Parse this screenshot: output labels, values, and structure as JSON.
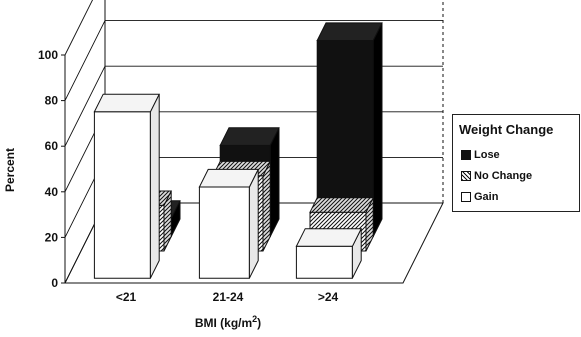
{
  "chart_data": {
    "type": "bar",
    "categories": [
      "<21",
      "21-24",
      ">24"
    ],
    "series": [
      {
        "name": "Lose",
        "values": [
          8,
          40,
          86
        ]
      },
      {
        "name": "No Change",
        "values": [
          20,
          33,
          17
        ]
      },
      {
        "name": "Gain",
        "values": [
          73,
          40,
          14
        ]
      }
    ],
    "ylabel": "Percent",
    "xlabel": "BMI (kg/m²)",
    "xlabel_base": "BMI (kg/m",
    "xlabel_sup": "2",
    "xlabel_end": ")",
    "ylim": [
      0,
      100
    ],
    "yticks": [
      0,
      20,
      40,
      60,
      80,
      100
    ],
    "legend_title": "Weight Change",
    "legend_position": "right",
    "grid": true,
    "projection": "3d",
    "colors": {
      "Lose": "#111111",
      "No Change": "#ffffff",
      "Gain": "#ffffff"
    },
    "fill_patterns": {
      "Lose": "solid",
      "No Change": "diagonal-hatch",
      "Gain": "open"
    }
  }
}
